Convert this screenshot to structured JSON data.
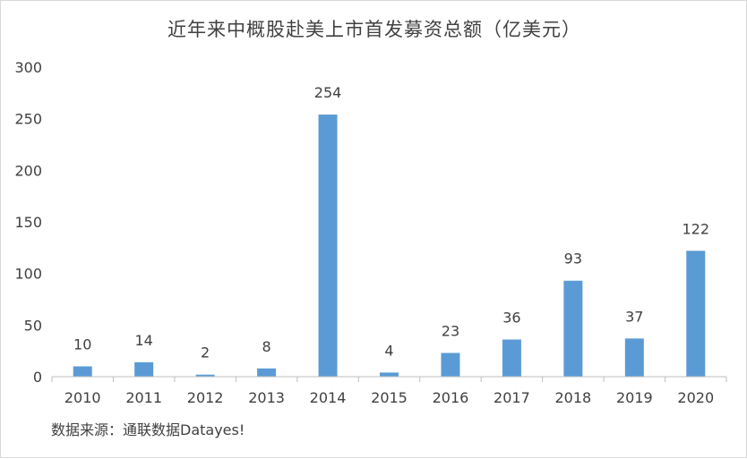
{
  "title": "近年来中概股赴美上市首发募资总额（亿美元）",
  "source": "数据来源：通联数据Datayes!",
  "colors": {
    "bar": "#5b9bd5",
    "axis": "#bfbfbf",
    "text": "#404040"
  },
  "chart_data": {
    "type": "bar",
    "title": "近年来中概股赴美上市首发募资总额（亿美元）",
    "categories": [
      "2010",
      "2011",
      "2012",
      "2013",
      "2014",
      "2015",
      "2016",
      "2017",
      "2018",
      "2019",
      "2020"
    ],
    "values": [
      10,
      14,
      2,
      8,
      254,
      4,
      23,
      36,
      93,
      37,
      122
    ],
    "data_labels": [
      "10",
      "14",
      "2",
      "8",
      "254",
      "4",
      "23",
      "36",
      "93",
      "37",
      "122"
    ],
    "yticks": [
      "0",
      "50",
      "100",
      "150",
      "200",
      "250",
      "300"
    ],
    "ylim": [
      0,
      300
    ],
    "grid": false,
    "legend": "none"
  }
}
